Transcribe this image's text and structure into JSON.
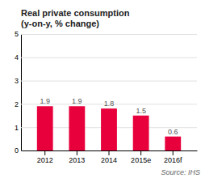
{
  "chart_data": {
    "type": "bar",
    "title": "Real private consumption\n(y-on-y, % change)",
    "categories": [
      "2012",
      "2013",
      "2014",
      "2015e",
      "2016f"
    ],
    "values": [
      1.9,
      1.9,
      1.8,
      1.5,
      0.6
    ],
    "color": "#e8003c",
    "ylim": [
      0,
      5
    ],
    "yticks": [
      0,
      1,
      2,
      3,
      4,
      5
    ],
    "grid": true,
    "data_labels": true,
    "source": "Source: IHS"
  }
}
